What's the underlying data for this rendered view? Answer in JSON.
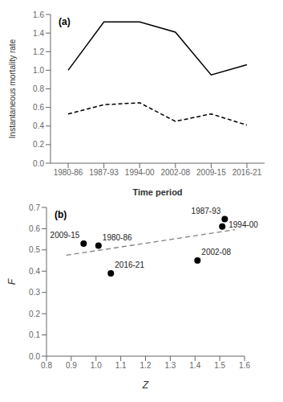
{
  "chart_data": [
    {
      "type": "line",
      "xlabel": "Time period",
      "ylabel": "Instantaneous mortality rate",
      "annotations": [
        "(a)"
      ],
      "categories": [
        "1980-86",
        "1987-93",
        "1994-00",
        "2002-08",
        "2009-15",
        "2016-21"
      ],
      "series": [
        {
          "values": [
            1.0,
            1.52,
            1.52,
            1.41,
            0.95,
            1.06
          ],
          "color": "black",
          "line_style": "solid"
        },
        {
          "values": [
            0.53,
            0.63,
            0.65,
            0.45,
            0.53,
            0.41
          ],
          "color": "black",
          "line_style": "dashed"
        }
      ],
      "ylim": [
        0,
        1.6
      ],
      "yticks": [
        {
          "value": 0,
          "label": "0.0"
        },
        0.2,
        0.4,
        0.6,
        0.8,
        {
          "value": 1.0,
          "label": "1.0"
        },
        1.2,
        1.4,
        1.6
      ]
    },
    {
      "type": "scatter",
      "xlabel": "Z",
      "ylabel": "F",
      "annotations": [
        "(b)"
      ],
      "series": [
        {
          "type": "scatter",
          "x": [
            0.95,
            1.01,
            1.52,
            1.51,
            1.41,
            1.06
          ],
          "values": [
            0.53,
            0.52,
            0.645,
            0.61,
            0.45,
            0.39
          ],
          "labels": [
            "2009-15",
            "1980-86",
            "1987-93",
            "1994-00",
            "2002-08",
            "2016-21"
          ],
          "color": "black",
          "marker": "circle"
        },
        {
          "type": "line",
          "x": [
            0.88,
            1.56
          ],
          "values": [
            0.475,
            0.595
          ],
          "color": "gray",
          "line_style": "dashed"
        }
      ],
      "xlim": [
        0.8,
        1.6
      ],
      "ylim": [
        0,
        0.7
      ],
      "xticks": [
        0.8,
        0.9,
        {
          "value": 1.0,
          "label": "1.0"
        },
        1.1,
        1.2,
        1.3,
        1.4,
        1.5,
        1.6
      ],
      "yticks": [
        {
          "value": 0,
          "label": "0.0"
        },
        0.1,
        0.2,
        0.3,
        0.4,
        0.5,
        0.6,
        0.7
      ]
    }
  ]
}
